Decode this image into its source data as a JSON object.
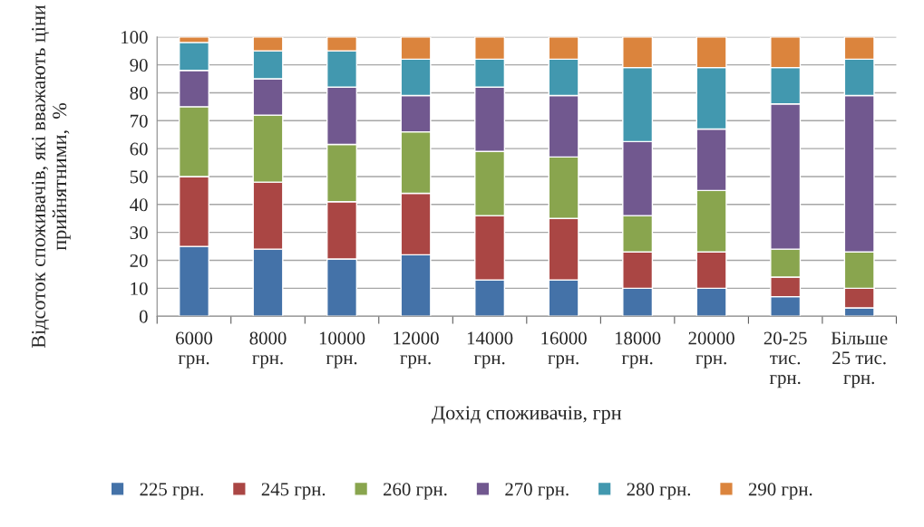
{
  "chart_data": {
    "type": "bar",
    "stacked": true,
    "xlabel": "Дохід споживачів, грн",
    "ylabel": "Відсоток споживачів, які вважають ціни прийнятними,  %",
    "categories": [
      "6000\nгрн.",
      "8000\nгрн.",
      "10000\nгрн.",
      "12000\nгрн.",
      "14000\nгрн.",
      "16000\nгрн.",
      "18000\nгрн.",
      "20000\nгрн.",
      "20-25\nтис.\nгрн.",
      "Більше\n25 тис.\nгрн."
    ],
    "series": [
      {
        "name": "225 грн.",
        "color": "#4472a8",
        "values": [
          25,
          24,
          20.5,
          22,
          13,
          13,
          10,
          10,
          7,
          3
        ]
      },
      {
        "name": "245 грн.",
        "color": "#aa4644",
        "values": [
          25,
          24,
          20.5,
          22,
          23,
          22,
          13,
          13,
          7,
          7
        ]
      },
      {
        "name": "260 грн.",
        "color": "#89a54e",
        "values": [
          25,
          24,
          20.5,
          22,
          23,
          22,
          13,
          22,
          10,
          13
        ]
      },
      {
        "name": "270 грн.",
        "color": "#71588f",
        "values": [
          13,
          13,
          20.5,
          13,
          23,
          22,
          26.5,
          22,
          52,
          56
        ]
      },
      {
        "name": "280 грн.",
        "color": "#4298af",
        "values": [
          10,
          10,
          13,
          13,
          10,
          13,
          26.5,
          22,
          13,
          13
        ]
      },
      {
        "name": "290 грн.",
        "color": "#db843d",
        "values": [
          2,
          5,
          5,
          8,
          8,
          8,
          11,
          11,
          11,
          8
        ]
      }
    ],
    "ylim": [
      0,
      100
    ],
    "yticks": [
      0,
      10,
      20,
      30,
      40,
      50,
      60,
      70,
      80,
      90,
      100
    ],
    "grid": "y",
    "legend": "bottom"
  }
}
